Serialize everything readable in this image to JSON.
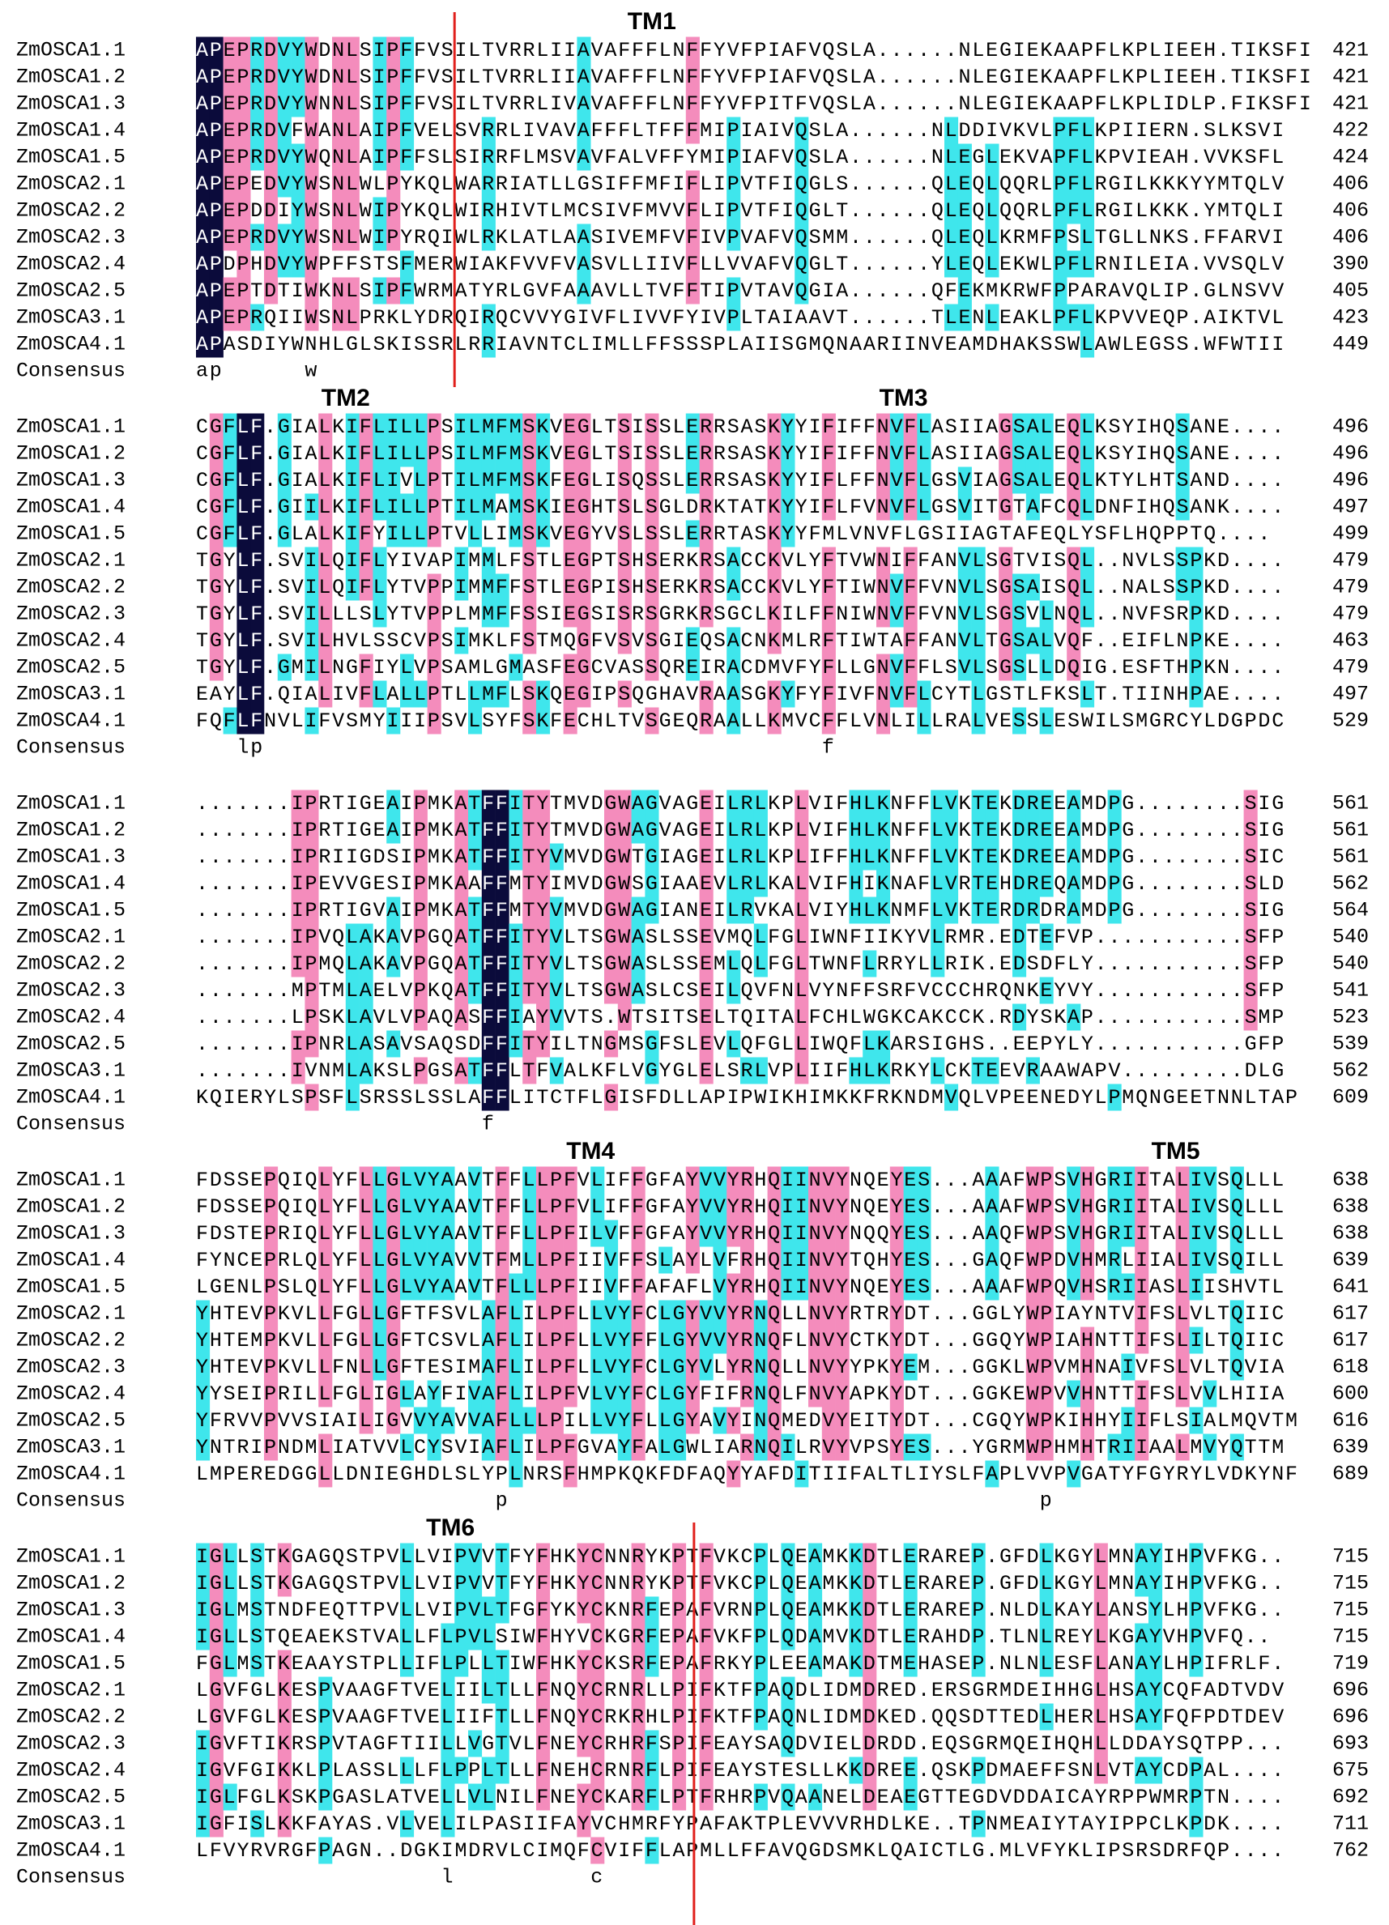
{
  "blocks": [
    {
      "tm_labels": [
        "TM1"
      ],
      "consensus_label": "Consensus",
      "consensus": "ap      w",
      "rows": [
        {
          "name": "ZmOSCA1.1",
          "seq": "APEPRDVYWDNLSIPFFVSILTVRRLIIAVAFFFLNFFYVFPIAFVQSLA......NLEGIEKAAPFLKPLIEEH.TIKSFI",
          "end": 421
        },
        {
          "name": "ZmOSCA1.2",
          "seq": "APEPRDVYWDNLSIPFFVSILTVRRLIIAVAFFFLNFFYVFPIAFVQSLA......NLEGIEKAAPFLKPLIEEH.TIKSFI",
          "end": 421
        },
        {
          "name": "ZmOSCA1.3",
          "seq": "APEPRDVYWNNLSIPFFVSILTVRRLIVAVAFFFLNFFYVFPITFVQSLA......NLEGIEKAAPFLKPLIDLP.FIKSFI",
          "end": 421
        },
        {
          "name": "ZmOSCA1.4",
          "seq": "APEPRDVFWANLAIPFVELSVRRLIVAVAFFFLTFFFMIPIAIVQSLA......NLDDIVKVLPFLKPIIERN.SLKSVI",
          "end": 422
        },
        {
          "name": "ZmOSCA1.5",
          "seq": "APEPRDVYWQNLAIPFFSLSIRRFLMSVAVFALVFFYMIPIAFVQSLA......NLEGLEKVAPFLKPVIEAH.VVKSFL",
          "end": 424
        },
        {
          "name": "ZmOSCA2.1",
          "seq": "APEPEDVYWSNLWLPYKQLWARRIATLLGSIFFMFIFLIPVTFIQGLS......QLEQLQQRLPFLRGILKKKYYMTQLV",
          "end": 406
        },
        {
          "name": "ZmOSCA2.2",
          "seq": "APEPDDIYWSNLWIPYKQLWIRHIVTLMCSIVFMVVFLIPVTFIQGLT......QLEQLQQRLPFLRGILKKK.YMTQLI",
          "end": 406
        },
        {
          "name": "ZmOSCA2.3",
          "seq": "APEPRDVYWSNLWIPYRQIWLRKLATLAASIVEMFVFIVPVAFVQSMM......QLEQLKRMFPSLTGLLNKS.FFARVI",
          "end": 406
        },
        {
          "name": "ZmOSCA2.4",
          "seq": "APDPHDVYWPFFSTSFMERWIAKFVVFVASVLLIIVFLLVVAFVQGLT......YLEQLEKWLPFLRNILEIA.VVSQLV",
          "end": 390
        },
        {
          "name": "ZmOSCA2.5",
          "seq": "APEPTDTIWKNLSIPFWRMATYRLGVFAAAVLLTVFFTIPVTAVQGIA......QFEKMKRWFPPARAVQLIP.GLNSVV",
          "end": 405
        },
        {
          "name": "ZmOSCA3.1",
          "seq": "APEPRQIIWSNLPRKLYDRQIRQCVVYGIVFLIVVFYIVPLTAIAAVT......TLENLEAKLPFLKPVVEQP.AIKTVL",
          "end": 423
        },
        {
          "name": "ZmOSCA4.1",
          "seq": "APASDIYWNHLGLSKISSRLRRIAVNTCLIMLLFFSSSPLAIISGMQNAARIINVEAMDHAKSSWLAWLEGSS.WFWTII",
          "end": 449
        }
      ]
    },
    {
      "tm_labels": [
        "TM2",
        "TM3"
      ],
      "consensus_label": "Consensus",
      "consensus": "   lp                                         f",
      "rows": [
        {
          "name": "ZmOSCA1.1",
          "seq": "CGFLF.GIALKIFLILLPSILMFMSKVEGLTSISSLERRSASKYYIFIFFNVFLASIIAGSALEQLKSYIHQSANE....",
          "end": 496
        },
        {
          "name": "ZmOSCA1.2",
          "seq": "CGFLF.GIALKIFLILLPSILMFMSKVEGLTSISSLERRSASKYYIFIFFNVFLASIIAGSALEQLKSYIHQSANE....",
          "end": 496
        },
        {
          "name": "ZmOSCA1.3",
          "seq": "CGFLF.GIALKIFLIVLPTILMFMSKFEGLISQSSLERRSASKYYIFLFFNVFLGSVIAGSALEQLKTYLHTSAND....",
          "end": 496
        },
        {
          "name": "ZmOSCA1.4",
          "seq": "CGFLF.GIILKIFLILLPTILMAMSKIEGHTSLSGLDRKTATKYYIFLFVNVFLGSVITGTAFCQLDNFIHQSANK....",
          "end": 497
        },
        {
          "name": "ZmOSCA1.5",
          "seq": "CGFLF.GLALKIFYILLPTVLLIMSKVEGYVSLSSLERRTASKYYFMLVNVFLGSIIAGTAFEQLYSFLHQPPTQ....",
          "end": 499
        },
        {
          "name": "ZmOSCA2.1",
          "seq": "TGYLF.SVILQIFLYIVAPIMMLFSTLEGPTSHSERKRSACCKVLYFTVWNIFFANVLSGTVISQL..NVLSSPKD....",
          "end": 479
        },
        {
          "name": "ZmOSCA2.2",
          "seq": "TGYLF.SVILQIFLYTVPPIMMFFSTLEGPISHSERKRSACCKVLYFTIWNVFFVNVLSGSAISQL..NALSSPKD....",
          "end": 479
        },
        {
          "name": "ZmOSCA2.3",
          "seq": "TGYLF.SVILLLSLYTVPPLMMFFSSIEGSISRSGRKRSGCLKILFFNIWNVFFVNVLSGSVLNQL..NVFSRPKD....",
          "end": 479
        },
        {
          "name": "ZmOSCA2.4",
          "seq": "TGYLF.SVILHVLSSCVPSIMKLFSTMQGFVSVSGIEQSACNKMLRFTIWTAFFANVLTGSALVQF..EIFLNPKE....",
          "end": 463
        },
        {
          "name": "ZmOSCA2.5",
          "seq": "TGYLF.GMILNGFIYLVPSAMLGMASFEGCVASSQREIRACDMVFYFLLGNVFFLSVLSGSLLDQIG.ESFTHPKN....",
          "end": 479
        },
        {
          "name": "ZmOSCA3.1",
          "seq": "EAYLF.QIALIVFLALLPTLLMFLSKQEGIPSQGHAVRAASGKYFYFIVFNVFLCYTLGSTLFKSLT.TIINHPAE....",
          "end": 497
        },
        {
          "name": "ZmOSCA4.1",
          "seq": "FQFLFNVLIFVSMYIIIPSVLSYFSKFECHLTVSGEQRAALLKMVCFFLVNLILLRALVESSLESWILSMGRCYLDGPDC",
          "end": 529
        }
      ]
    },
    {
      "tm_labels": [],
      "consensus_label": "Consensus",
      "consensus": "                     f",
      "rows": [
        {
          "name": "ZmOSCA1.1",
          "seq": ".......IPRTIGEAIPMKATFFITYTMVDGWAGVAGEILRLKPLVIFHLKNFFLVKTEKDREEAMDPG........SIG",
          "end": 561
        },
        {
          "name": "ZmOSCA1.2",
          "seq": ".......IPRTIGEAIPMKATFFITYTMVDGWAGVAGEILRLKPLVIFHLKNFFLVKTEKDREEAMDPG........SIG",
          "end": 561
        },
        {
          "name": "ZmOSCA1.3",
          "seq": ".......IPRIIGDSIPMKATFFITYVMVDGWTGIAGEILRLKPLIFFHLKNFFLVKTEKDREEAMDPG........SIC",
          "end": 561
        },
        {
          "name": "ZmOSCA1.4",
          "seq": ".......IPEVVGESIPMKAAFFMTYIMVDGWSGIAAEVLRLKALVIFHIKNAFLVRTEHDREQAMDPG........SLD",
          "end": 562
        },
        {
          "name": "ZmOSCA1.5",
          "seq": ".......IPRTIGVAIPMKATFFMTYVMVDGWAGIANEILRVKALVIYHLKNMFLVKTERDRDRAMDPG........SIG",
          "end": 564
        },
        {
          "name": "ZmOSCA2.1",
          "seq": ".......IPVQLAKAVPGQATFFITYVLTSGWASLSSEVMQLFGLIWNFIIKYVLRMR.EDTEFVP...........SFP",
          "end": 540
        },
        {
          "name": "ZmOSCA2.2",
          "seq": ".......IPMQLAKAVPGQATFFITYVLTSGWASLSSEMLQLFGLTWNFLRRYLLRIK.EDSDFLY...........SFP",
          "end": 540
        },
        {
          "name": "ZmOSCA2.3",
          "seq": ".......MPTMLAELVPKQATFFITYVLTSGWASLCSEILQVFNLVYNFFSRFVCCCHRQNKEYVY...........SFP",
          "end": 541
        },
        {
          "name": "ZmOSCA2.4",
          "seq": ".......LPSKLAVLVPAQASFFIAYVVTS.WTSITSELTQITALFCHLWGKCAKCCK.RDYSKAP...........SMP",
          "end": 523
        },
        {
          "name": "ZmOSCA2.5",
          "seq": ".......IPNRLASAVSAQSDFFITYILTNGMSGFSLEVLQFGLLIWQFLKARSIGHS..EEPYLY...........GFP",
          "end": 539
        },
        {
          "name": "ZmOSCA3.1",
          "seq": ".......IVNMLAKSLPGSATFFLTFVALKFLVGYGLELSRLVPLIIFHLKRKYLCKTEEVRAAWAPV.........DLG",
          "end": 562
        },
        {
          "name": "ZmOSCA4.1",
          "seq": "KQIERYLSPSFLSRSSLSSLAFFLITCTFLGISFDLLAPIPWIKHIMKKFRKNDMVQLVPEENEDYLPMQNGEETNNLTAP",
          "end": 609
        }
      ]
    },
    {
      "tm_labels": [
        "TM4",
        "TM5"
      ],
      "consensus_label": "Consensus",
      "consensus": "                      p                                       p",
      "rows": [
        {
          "name": "ZmOSCA1.1",
          "seq": "FDSSEPQIQLYFLLGLVYAAVTFFLLPFVLIFFGFAYVVYRHQIINVYNQEYES...AAAFWPSVHGRIITALIVSQLLL",
          "end": 638
        },
        {
          "name": "ZmOSCA1.2",
          "seq": "FDSSEPQIQLYFLLGLVYAAVTFFLLPFVLIFFGFAYVVYRHQIINVYNQEYES...AAAFWPSVHGRIITALIVSQLLL",
          "end": 638
        },
        {
          "name": "ZmOSCA1.3",
          "seq": "FDSTEPRIQLYFLLGLVYAAVTFFLLPFILVFFGFAYVVYRHQIINVYNQQYES...AAQFWPSVHGRIITALIVSQLLL",
          "end": 638
        },
        {
          "name": "ZmOSCA1.4",
          "seq": "FYNCEPRLQLYFLLGLVYAVVTFMLLPFIIVFFSLAYLVFRHQIINVYTQHYES...GAQFWPDVHMRLIIALIVSQILL",
          "end": 639
        },
        {
          "name": "ZmOSCA1.5",
          "seq": "LGENLPSLQLYFLLGLVYAAVTFLLLPFIIVFFAFAFLVYRHQIINVYNQEYES...AAAFWPQVHSRIIASLIISHVTL",
          "end": 641
        },
        {
          "name": "ZmOSCA2.1",
          "seq": "YHTEVPKVLLFGLLGFTFSVLAFLILPFLLVYFCLGYVVYRNQLLNVYRTRYDT...GGLYWPIAYNTVIFSLVLTQIIC",
          "end": 617
        },
        {
          "name": "ZmOSCA2.2",
          "seq": "YHTEMPKVLLFGLLGFTCSVLAFLILPFLLVYFFLGYVVYRNQFLNVYCTKYDT...GGQYWPIAHNTTIFSLILTQIIC",
          "end": 617
        },
        {
          "name": "ZmOSCA2.3",
          "seq": "YHTEVPKVLLFNLLGFTESIMAFLILPFLLVYFCLGYVLYRNQLLNVYYPKYEM...GGKLWPVMHNAIVFSLVLTQVIA",
          "end": 618
        },
        {
          "name": "ZmOSCA2.4",
          "seq": "YYSEIPRILLFGLIGLAYFIVAFLILPFVLVYFCLGYFIFRNQLFNVYAPKYDT...GGKEWPVVHNTTIFSLVVLHIIA",
          "end": 600
        },
        {
          "name": "ZmOSCA2.5",
          "seq": "YFRVVPVVSIAILIGVVYAVVAFLLLPILLVYFLLGYAVYINQMEDVYEITYDT...CGQYWPKIHHYIIFLSIALMQVTM",
          "end": 616
        },
        {
          "name": "ZmOSCA3.1",
          "seq": "YNTRIPNDMLIATVVLCYSVIAFLILPFGVAYFALGWLIARNQILRVYVPSYES...YGRMWPHMHTRIIAALMVYQTTM",
          "end": 639
        },
        {
          "name": "ZmOSCA4.1",
          "seq": "LMPEREDGGLLDNIEGHDLSLYPLNRSFHMPKQKFDFAQYYAFDITIIFALTLIYSLFAPLVVPVGATYFGYRYLVDKYNF",
          "end": 689
        }
      ]
    },
    {
      "tm_labels": [
        "TM6"
      ],
      "consensus_label": "Consensus",
      "consensus": "                  l          c",
      "rows": [
        {
          "name": "ZmOSCA1.1",
          "seq": "IGLLSTKGAGQSTPVLLVIPVVTFYFHKYCNNRYKPTFVKCPLQEAMKKDTLERAREP.GFDLKGYLMNAYIHPVFKG..",
          "end": 715
        },
        {
          "name": "ZmOSCA1.2",
          "seq": "IGLLSTKGAGQSTPVLLVIPVVTFYFHKYCNNRYKPTFVKCPLQEAMKKDTLERAREP.GFDLKGYLMNAYIHPVFKG..",
          "end": 715
        },
        {
          "name": "ZmOSCA1.3",
          "seq": "IGLMSTNDFEQTTPVLLVIPVLTFGFYKYCKNRFEPAFVRNPLQEAMKKDTLERAREP.NLDLKAYLANSYLHPVFKG..",
          "end": 715
        },
        {
          "name": "ZmOSCA1.4",
          "seq": "IGLLSTQEAEKSTVALLFLPVLSIWFHYVCKGRFEPAFVKFPLQDAMVKDTLERAHDP.TLNLREYLKGAYVHPVFQ..",
          "end": 715
        },
        {
          "name": "ZmOSCA1.5",
          "seq": "FGLMSTKEAAYSTPLLIFLPLLTIWFHKYCKSRFEPAFRKYPLEEAMAKDTMEHASEP.NLNLESFLANAYLHPIFRLF.",
          "end": 719
        },
        {
          "name": "ZmOSCA2.1",
          "seq": "LGVFGLKESPVAAGFTVELIILTLLFNQYCRNRLLPIFKTFPAQDLIDMDRED.ERSGRMDEIHHGLHSAYCQFADTVDV",
          "end": 696
        },
        {
          "name": "ZmOSCA2.2",
          "seq": "LGVFGLKESPVAAGFTVELIIFTLLFNQYCRKRHLPIFKTFPAQNLIDMDKED.QQSDTTEDLHERLHSAYFQFPDTDEV",
          "end": 696
        },
        {
          "name": "ZmOSCA2.3",
          "seq": "IGVFTIKRSPVTAGFTIILLVGTVLFNEYCRHRFSPIFEAYSAQDVIELDRDD.EQSGRMQEIHQHLLDDAYSQTPP...",
          "end": 693
        },
        {
          "name": "ZmOSCA2.4",
          "seq": "IGVFGIKKLPLASSLLLFLPPLTLLFNEHCRNRFLPIFEAYSTESLLKKDREE.QSKPDMAEFFSNLVTAYCDPAL....",
          "end": 675
        },
        {
          "name": "ZmOSCA2.5",
          "seq": "IGLFGLKSKPGASLATVELLVLNILFNEYCKARFLPTFRHRPVQAANELDEAEGTTEGDVDDAICAYRPPWMRPTN....",
          "end": 692
        },
        {
          "name": "ZmOSCA3.1",
          "seq": "IGFISLKKFAYAS.VLVELILPASIIFAYVCHMRFYPAFAKTPLEVVVRHDLKE..TPNMEAIYTAYIPPCLKPDK....",
          "end": 711
        },
        {
          "name": "ZmOSCA4.1",
          "seq": "LFVYRVRGFPAGN..DGKIMDRVLCIMQFCVIFFLAPMLLFFAVQGDSMKLQAICTLG.MLVFYKLIPSRSDRFQP....",
          "end": 762
        }
      ]
    }
  ]
}
